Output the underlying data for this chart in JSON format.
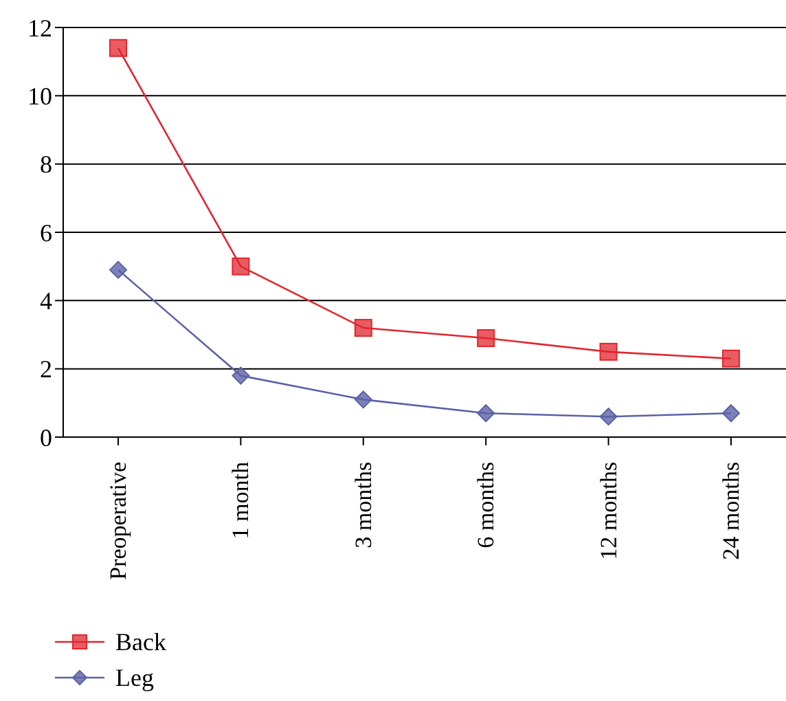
{
  "chart_data": {
    "type": "line",
    "categories": [
      "Preoperative",
      "1 month",
      "3 months",
      "6 months",
      "12 months",
      "24 months"
    ],
    "series": [
      {
        "name": "Back",
        "color": "#e0262e",
        "marker": "square",
        "values": [
          11.4,
          5.0,
          3.2,
          2.9,
          2.5,
          2.3
        ]
      },
      {
        "name": "Leg",
        "color": "#5b61a6",
        "marker": "diamond",
        "values": [
          4.9,
          1.8,
          1.1,
          0.7,
          0.6,
          0.7
        ]
      }
    ],
    "ylim": [
      0,
      12
    ],
    "yticks": [
      0,
      2,
      4,
      6,
      8,
      10,
      12
    ],
    "grid": "y",
    "legend": "bottom left"
  }
}
